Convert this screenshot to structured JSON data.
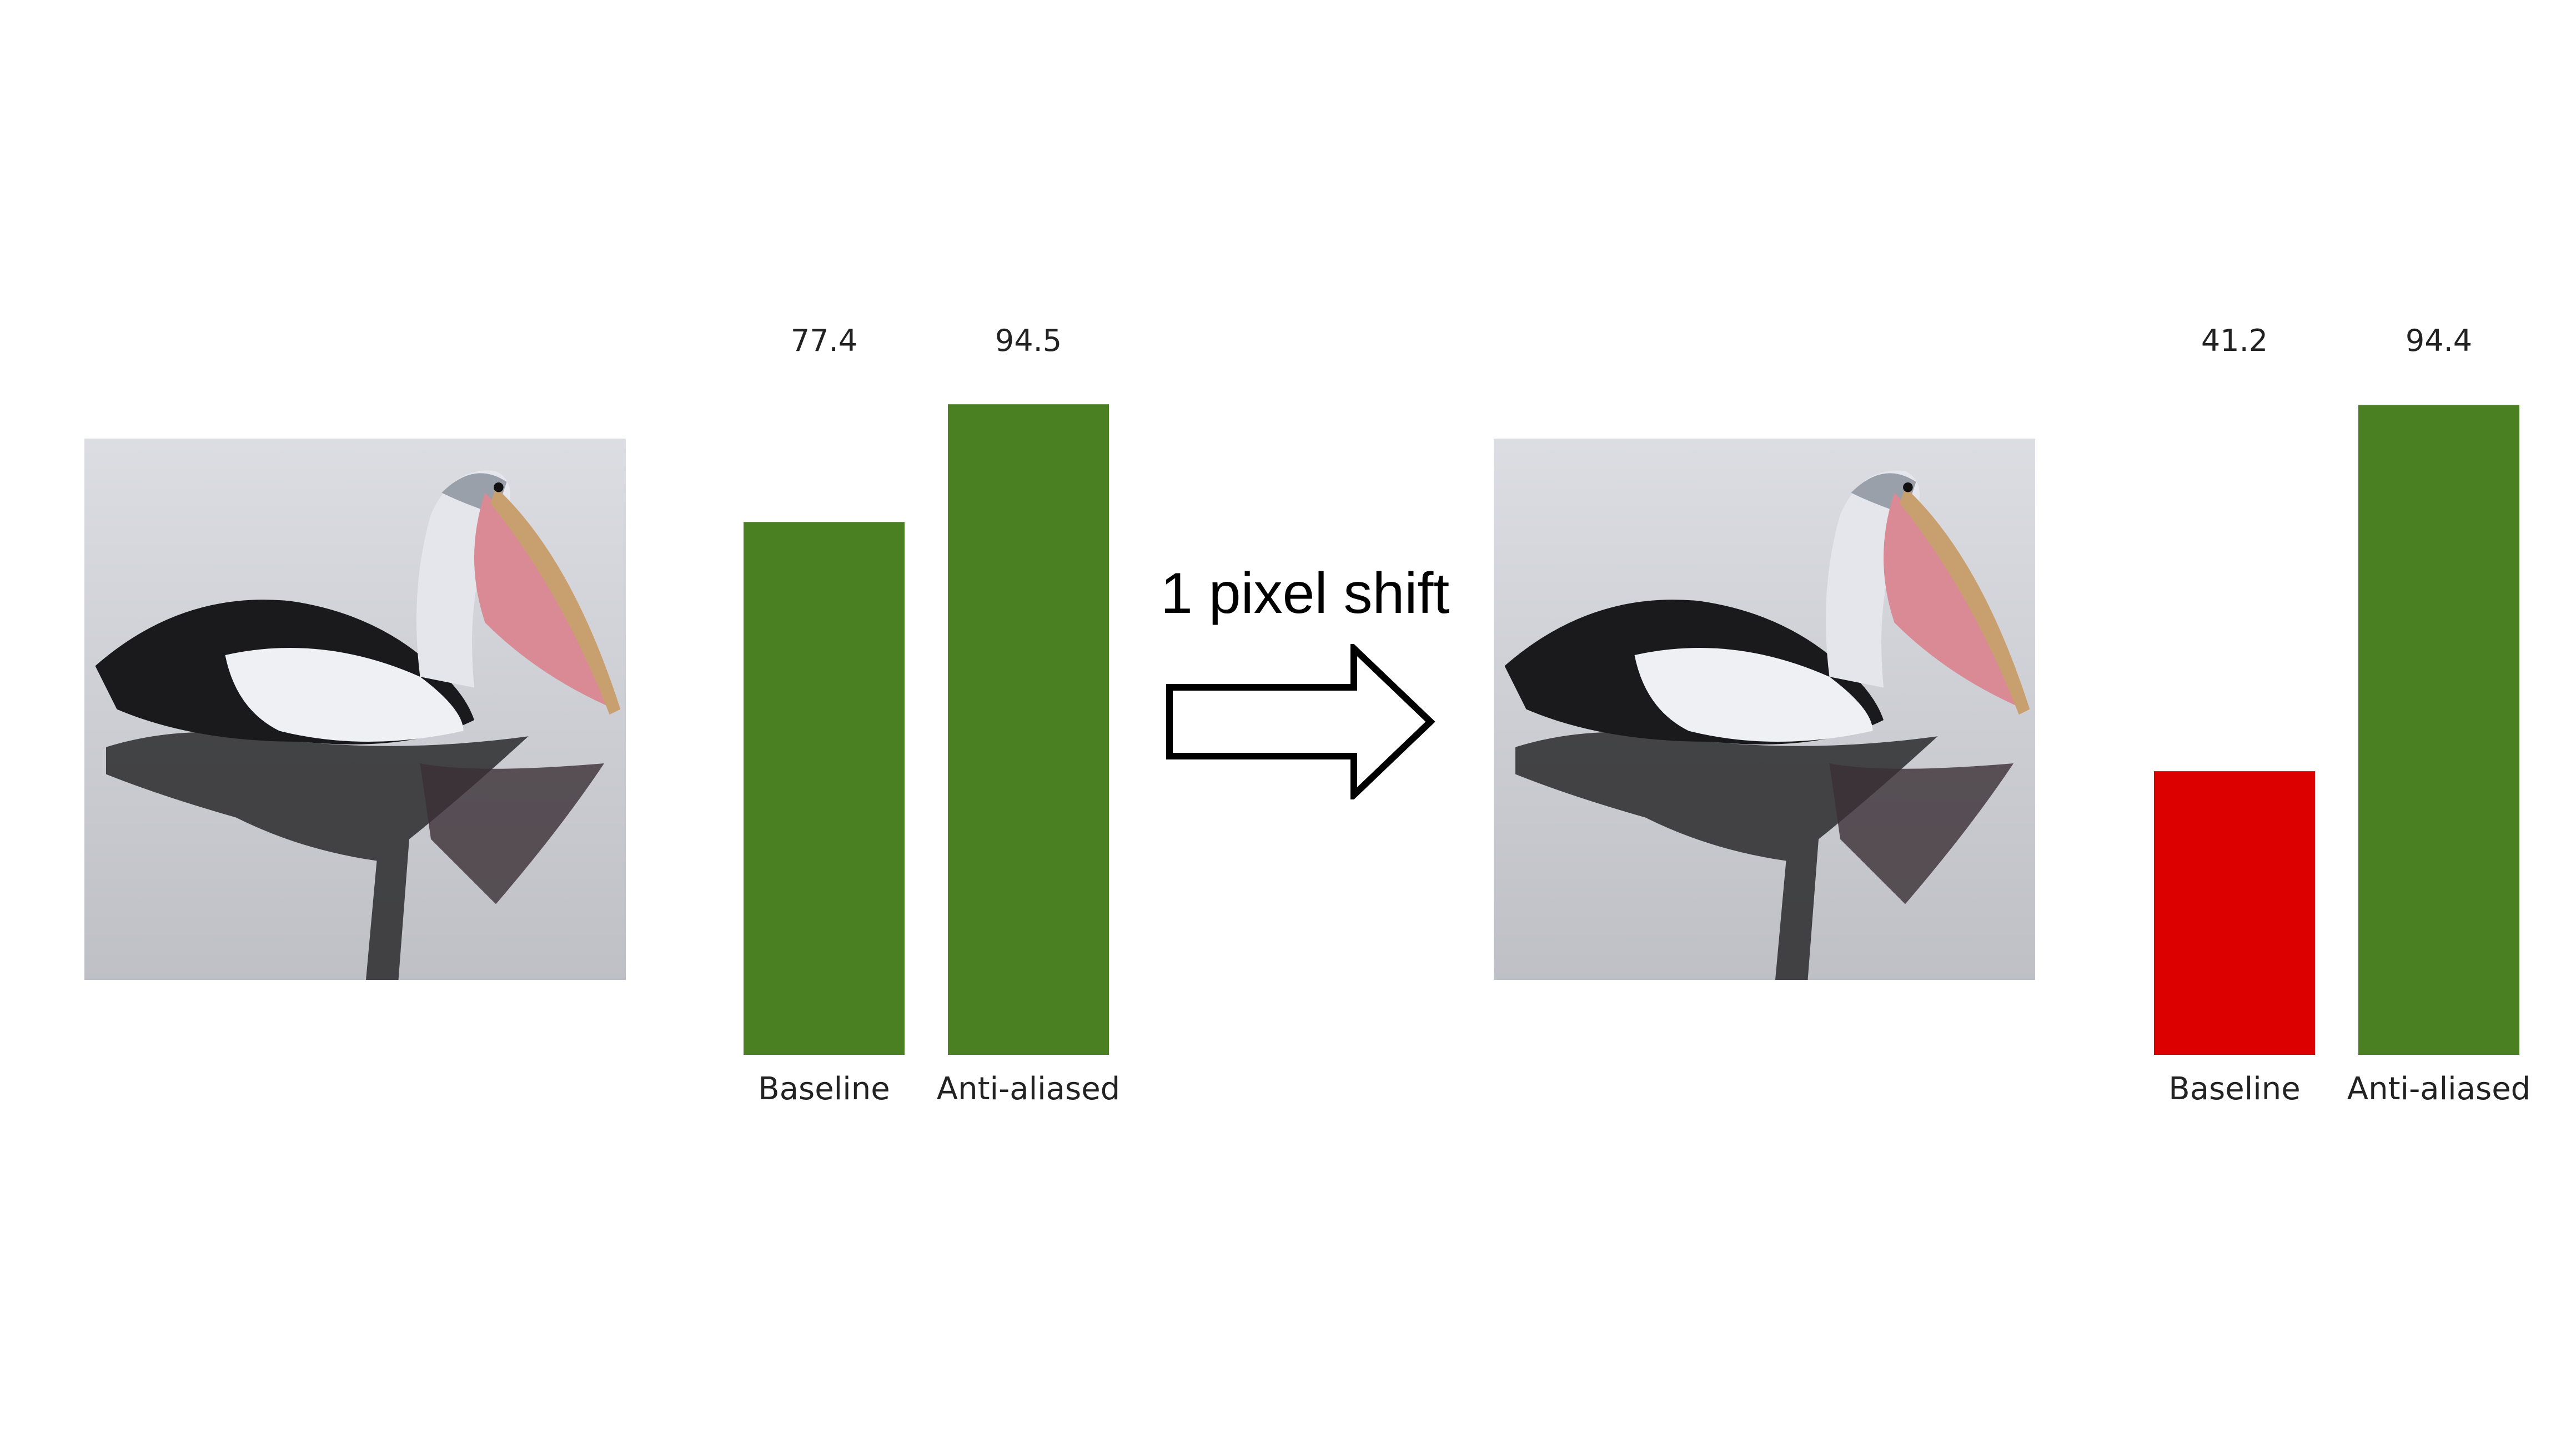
{
  "annotation": {
    "shift_label": "1 pixel shift"
  },
  "colors": {
    "ok": "#4a7f22",
    "bad": "#dd0000"
  },
  "chart_data": [
    {
      "type": "bar",
      "categories": [
        "Baseline",
        "Anti-aliased"
      ],
      "values": [
        77.4,
        94.5
      ],
      "value_labels": [
        "77.4",
        "94.5"
      ],
      "bar_colors": [
        "#4a7f22",
        "#4a7f22"
      ],
      "title": "",
      "xlabel": "",
      "ylabel": "",
      "ylim": [
        0,
        100
      ],
      "grid": false
    },
    {
      "type": "bar",
      "categories": [
        "Baseline",
        "Anti-aliased"
      ],
      "values": [
        41.2,
        94.4
      ],
      "value_labels": [
        "41.2",
        "94.4"
      ],
      "bar_colors": [
        "#dd0000",
        "#4a7f22"
      ],
      "title": "",
      "xlabel": "",
      "ylabel": "",
      "ylim": [
        0,
        100
      ],
      "grid": false
    }
  ]
}
